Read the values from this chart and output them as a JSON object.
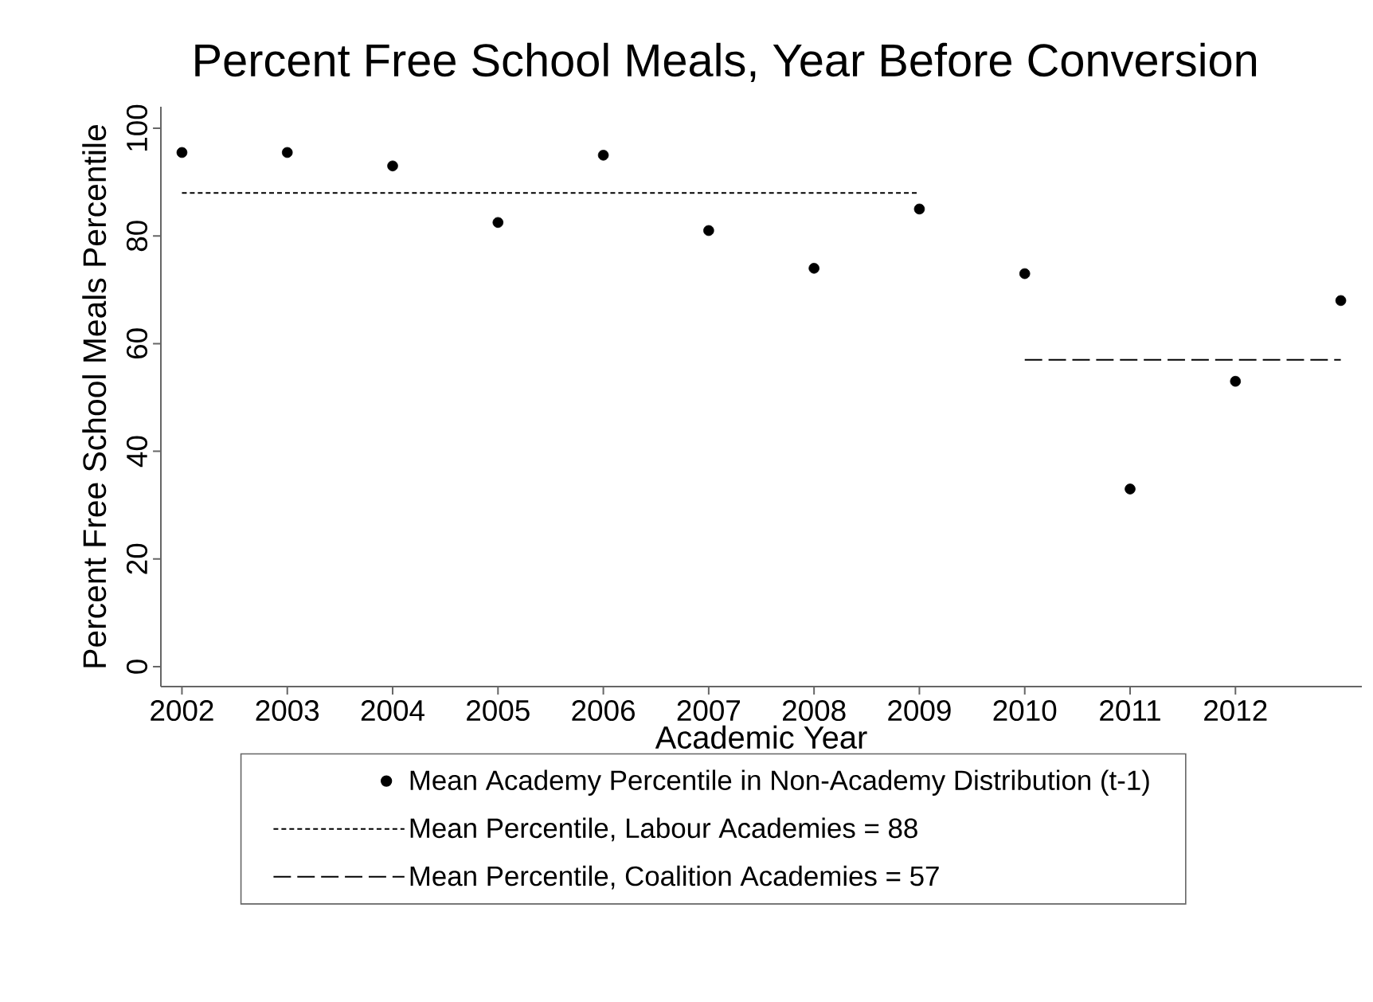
{
  "chart_data": {
    "type": "scatter",
    "title": "Percent Free School Meals, Year Before Conversion",
    "xlabel": "Academic Year",
    "ylabel": "Percent Free School Meals Percentile",
    "xlim": [
      2001.8,
      2013.2
    ],
    "xticks": [
      2002,
      2003,
      2004,
      2005,
      2006,
      2007,
      2008,
      2009,
      2010,
      2011,
      2012
    ],
    "ylim": [
      -3.7,
      104
    ],
    "yticks": [
      0,
      20,
      40,
      60,
      80,
      100
    ],
    "legend": "bottom",
    "series": [
      {
        "name": "Mean Academy Percentile in Non-Academy Distribution (t-1)",
        "type": "scatter",
        "marker": "circle",
        "color": "#000000",
        "x": [
          2002,
          2003,
          2004,
          2005,
          2006,
          2007,
          2008,
          2009,
          2010,
          2011,
          2012,
          2013
        ],
        "values": [
          95.5,
          95.5,
          93,
          82.5,
          95,
          81,
          74,
          85,
          73,
          33,
          53,
          68
        ]
      },
      {
        "name": "Mean Percentile, Labour Academies = 88",
        "type": "line",
        "line_style": "dotted",
        "color": "#000000",
        "x": [
          2002,
          2009
        ],
        "values": [
          88,
          88
        ]
      },
      {
        "name": "Mean Percentile, Coalition Academies = 57",
        "type": "line",
        "line_style": "dashed",
        "color": "#000000",
        "x": [
          2010,
          2013
        ],
        "values": [
          57,
          57
        ]
      }
    ]
  }
}
